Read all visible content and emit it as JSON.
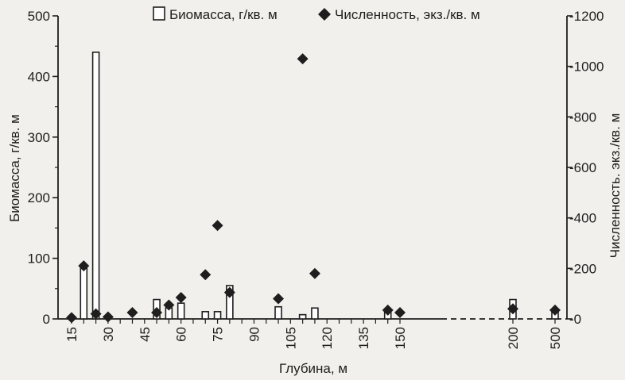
{
  "chart_data": {
    "type": "bar",
    "categories": [
      "15",
      "20",
      "25",
      "30",
      "40",
      "50",
      "55",
      "60",
      "70",
      "75",
      "80",
      "100",
      "110",
      "115",
      "145",
      "150",
      "200",
      "500"
    ],
    "x_tick_labels": [
      "15",
      "30",
      "45",
      "60",
      "75",
      "90",
      "105",
      "120",
      "135",
      "150",
      "200",
      "500"
    ],
    "xlabel": "Глубина, м",
    "ylabel_left": "Биомасса, г/кв. м",
    "ylabel_right": "Численность. экз./кв. м",
    "ylim_left": [
      0,
      500
    ],
    "ylim_right": [
      0,
      1200
    ],
    "yticks_left": [
      "0",
      "100",
      "200",
      "300",
      "400",
      "500"
    ],
    "yticks_right": [
      "0",
      "200",
      "400",
      "600",
      "800",
      "1000",
      "1200"
    ],
    "legend_position": "top",
    "grid": false,
    "series": [
      {
        "name": "Биомасса, г/кв. м",
        "kind": "bar",
        "axis": "left",
        "color": "#ffffff",
        "points": [
          {
            "x": "20",
            "y": 85
          },
          {
            "x": "25",
            "y": 440
          },
          {
            "x": "50",
            "y": 32
          },
          {
            "x": "55",
            "y": 18
          },
          {
            "x": "60",
            "y": 26
          },
          {
            "x": "70",
            "y": 12
          },
          {
            "x": "75",
            "y": 12
          },
          {
            "x": "80",
            "y": 55
          },
          {
            "x": "100",
            "y": 20
          },
          {
            "x": "110",
            "y": 7
          },
          {
            "x": "115",
            "y": 18
          },
          {
            "x": "145",
            "y": 12
          },
          {
            "x": "200",
            "y": 32
          },
          {
            "x": "500",
            "y": 12
          }
        ]
      },
      {
        "name": "Численность, экз./кв. м",
        "kind": "scatter",
        "axis": "right",
        "color": "#1e1e1e",
        "marker": "diamond",
        "points": [
          {
            "x": "15",
            "y": 5
          },
          {
            "x": "20",
            "y": 210
          },
          {
            "x": "25",
            "y": 20
          },
          {
            "x": "30",
            "y": 8
          },
          {
            "x": "40",
            "y": 25
          },
          {
            "x": "50",
            "y": 25
          },
          {
            "x": "55",
            "y": 55
          },
          {
            "x": "60",
            "y": 85
          },
          {
            "x": "70",
            "y": 175
          },
          {
            "x": "75",
            "y": 370
          },
          {
            "x": "80",
            "y": 105
          },
          {
            "x": "100",
            "y": 80
          },
          {
            "x": "110",
            "y": 1030
          },
          {
            "x": "115",
            "y": 180
          },
          {
            "x": "145",
            "y": 35
          },
          {
            "x": "150",
            "y": 25
          },
          {
            "x": "200",
            "y": 40
          },
          {
            "x": "500",
            "y": 35
          }
        ]
      }
    ]
  }
}
